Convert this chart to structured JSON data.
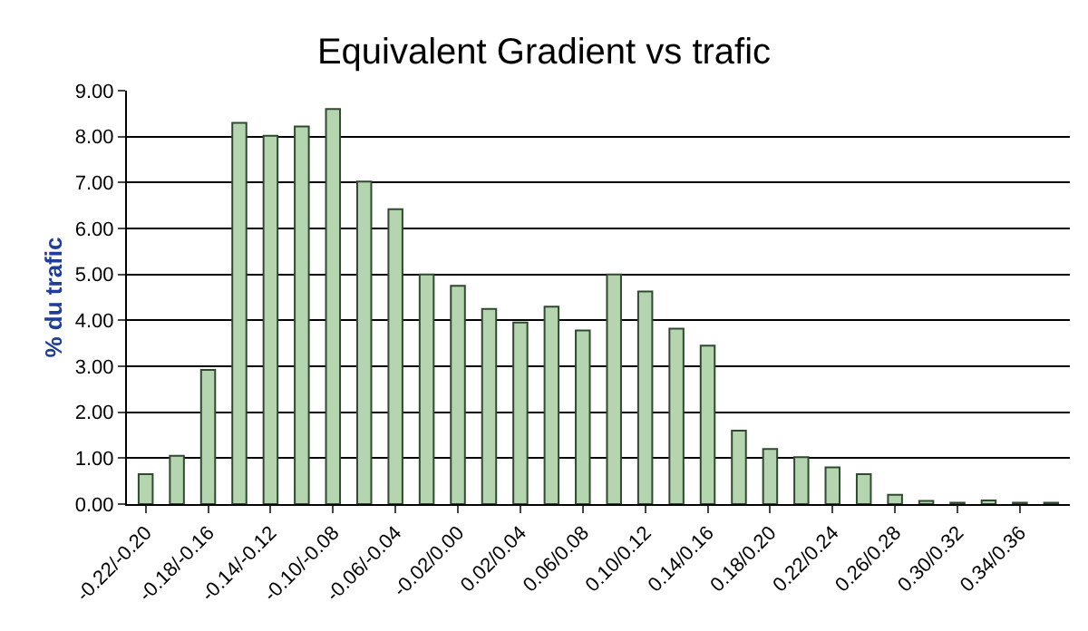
{
  "chart_data": {
    "type": "bar",
    "title": "Equivalent Gradient vs trafic",
    "ylabel": "% du trafic",
    "categories": [
      "-0.22/-0.20",
      null,
      "-0.18/-0.16",
      null,
      "-0.14/-0.12",
      null,
      "-0.10/-0.08",
      null,
      "-0.06/-0.04",
      null,
      "-0.02/0.00",
      null,
      "0.02/0.04",
      null,
      "0.06/0.08",
      null,
      "0.10/0.12",
      null,
      "0.14/0.16",
      null,
      "0.18/0.20",
      null,
      "0.22/0.24",
      null,
      "0.26/0.28",
      null,
      "0.30/0.32",
      null,
      "0.34/0.36",
      null
    ],
    "values": [
      0.65,
      1.05,
      2.92,
      8.3,
      8.02,
      8.22,
      8.6,
      7.02,
      6.42,
      5.0,
      4.75,
      4.25,
      3.95,
      4.3,
      3.78,
      5.0,
      4.63,
      3.82,
      3.45,
      1.6,
      1.2,
      1.02,
      0.8,
      0.65,
      0.2,
      0.07,
      0.03,
      0.08,
      0.03,
      0.03
    ],
    "color": "#b5d5b0",
    "ylim": [
      0,
      9
    ],
    "yticks": [
      {
        "value": 0,
        "label": "0.00"
      },
      {
        "value": 1,
        "label": "1.00"
      },
      {
        "value": 2,
        "label": "2.00"
      },
      {
        "value": 3,
        "label": "3.00"
      },
      {
        "value": 4,
        "label": "4.00"
      },
      {
        "value": 5,
        "label": "5.00"
      },
      {
        "value": 6,
        "label": "6.00"
      },
      {
        "value": 7,
        "label": "7.00"
      },
      {
        "value": 8,
        "label": "8.00"
      },
      {
        "value": 9,
        "label": "9.00"
      }
    ],
    "grid": "y"
  }
}
